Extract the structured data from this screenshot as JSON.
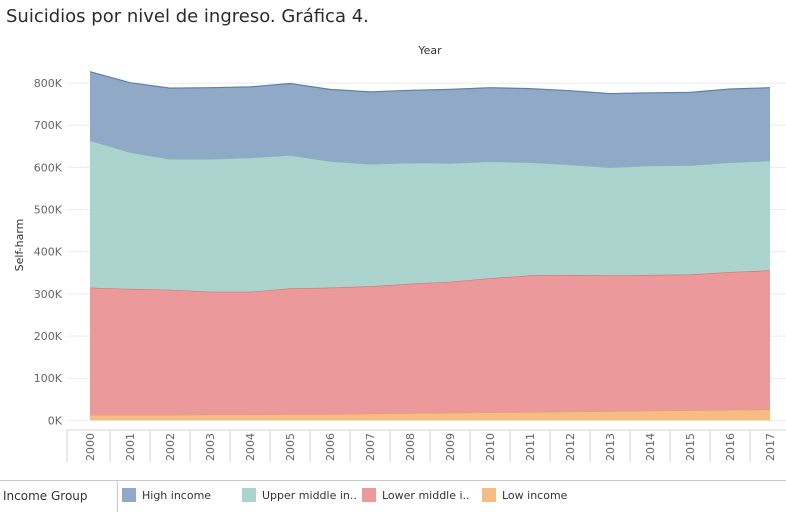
{
  "page": {
    "title": "Suicidios por nivel de ingreso. Gráfica 4."
  },
  "legend": {
    "title": "Income Group",
    "items": [
      {
        "label": "High income",
        "color": "#8fa9c6"
      },
      {
        "label": "Upper middle in..",
        "color": "#abd4cf"
      },
      {
        "label": "Lower middle i..",
        "color": "#ec999b"
      },
      {
        "label": "Low income",
        "color": "#f5bd84"
      }
    ]
  },
  "chart_data": {
    "type": "area",
    "stacked": true,
    "xlabel": "Year",
    "ylabel": "Self-harm",
    "ylim": [
      -18000,
      850000
    ],
    "yticks": [
      0,
      100000,
      200000,
      300000,
      400000,
      500000,
      600000,
      700000,
      800000
    ],
    "ytick_labels": [
      "0K",
      "100K",
      "200K",
      "300K",
      "400K",
      "500K",
      "600K",
      "700K",
      "800K"
    ],
    "categories": [
      "2000",
      "2001",
      "2002",
      "2003",
      "2004",
      "2005",
      "2006",
      "2007",
      "2008",
      "2009",
      "2010",
      "2011",
      "2012",
      "2013",
      "2014",
      "2015",
      "2016",
      "2017"
    ],
    "grid": "horizontal",
    "series": [
      {
        "name": "Low income",
        "color": "#f5bd84",
        "line": "#e8a25e",
        "values": [
          13000,
          13000,
          13000,
          14000,
          14000,
          15000,
          15000,
          16000,
          17000,
          18000,
          19000,
          20000,
          21000,
          22000,
          23000,
          24000,
          25000,
          26000
        ]
      },
      {
        "name": "Lower middle income",
        "color": "#ec999b",
        "line": "#de6e72",
        "values": [
          302000,
          299000,
          297000,
          291000,
          291000,
          298000,
          300000,
          302000,
          307000,
          311000,
          318000,
          324000,
          324000,
          322000,
          322000,
          322000,
          327000,
          330000
        ]
      },
      {
        "name": "Upper middle income",
        "color": "#abd4cf",
        "line": "#7fbdb5",
        "values": [
          349000,
          324000,
          310000,
          315000,
          318000,
          316000,
          300000,
          290000,
          287000,
          281000,
          277000,
          268000,
          262000,
          256000,
          259000,
          259000,
          260000,
          260000
        ]
      },
      {
        "name": "High income",
        "color": "#8fa9c6",
        "line": "#5f82a8",
        "values": [
          163000,
          165000,
          168000,
          169000,
          168000,
          170000,
          170000,
          171000,
          172000,
          175000,
          175000,
          175000,
          175000,
          175000,
          173000,
          173000,
          174000,
          173000
        ]
      }
    ]
  }
}
